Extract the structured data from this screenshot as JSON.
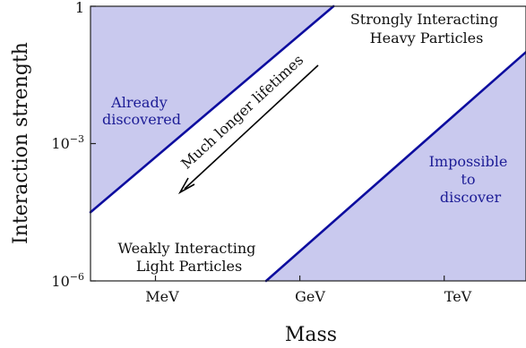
{
  "chart_data": {
    "type": "area",
    "xlabel": "Mass",
    "ylabel": "Interaction strength",
    "x_tick_labels": [
      "MeV",
      "GeV",
      "TeV"
    ],
    "y_tick_labels": [
      "10^-6",
      "10^-3",
      "1"
    ],
    "y_scale": "log",
    "ylim_log10": [
      -6,
      0
    ],
    "xlim_mass_decades": [
      -1.35,
      7.7
    ],
    "x_ticks_mass_decades": [
      0,
      3,
      6
    ],
    "boundary_lines": [
      {
        "name": "",
        "x": [
          -1.35,
          3.7
        ],
        "log10_y": [
          -4.5,
          0
        ]
      },
      {
        "name": "",
        "x": [
          2.3,
          7.7
        ],
        "log10_y": [
          -6,
          -1
        ]
      }
    ],
    "regions": [
      {
        "label": "Already discovered",
        "color": "#c9c9ee"
      },
      {
        "label": "Impossible to discover",
        "color": "#c9c9ee"
      }
    ],
    "annotations": [
      {
        "text_lines": [
          "Strongly Interacting",
          "Heavy Particles"
        ]
      },
      {
        "text_lines": [
          "Weakly Interacting",
          "Light Particles"
        ]
      },
      {
        "text": "Much longer lifetimes",
        "arrow": true
      }
    ],
    "colors": {
      "fill": "#c9c9ee",
      "boundary": "#0d0d9f",
      "label_blue": "#1c1c96",
      "axis": "#222222"
    }
  }
}
